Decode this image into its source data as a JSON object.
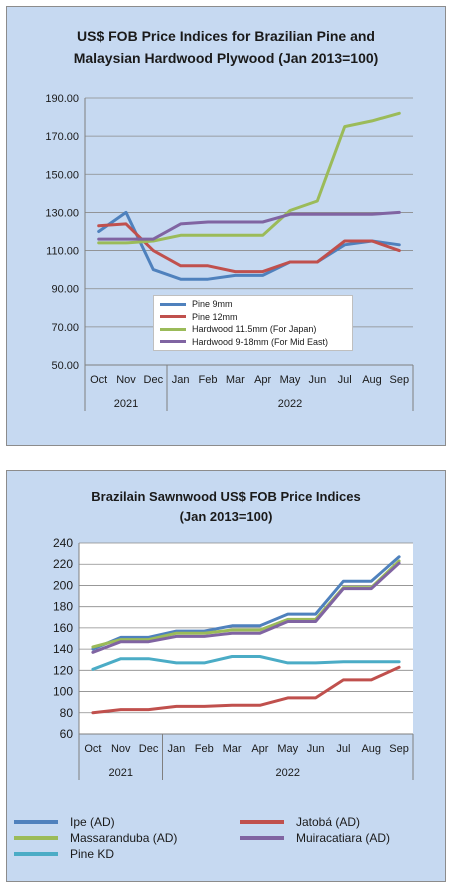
{
  "chart_data": [
    {
      "type": "line",
      "title_line1": "US$ FOB Price Indices for Brazilian Pine and",
      "title_line2": "Malaysian Hardwood Plywood (Jan 2013=100)",
      "categories": [
        "Oct",
        "Nov",
        "Dec",
        "Jan",
        "Feb",
        "Mar",
        "Apr",
        "May",
        "Jun",
        "Jul",
        "Aug",
        "Sep"
      ],
      "year_groups": [
        {
          "label": "2021",
          "count": 3
        },
        {
          "label": "2022",
          "count": 9
        }
      ],
      "ylim": [
        50,
        190
      ],
      "yticks": [
        "50.00",
        "70.00",
        "90.00",
        "110.00",
        "130.00",
        "150.00",
        "170.00",
        "190.00"
      ],
      "grid": true,
      "legend_position": "inside-bottom",
      "series": [
        {
          "name": "Pine 9mm",
          "color": "#4f81bd",
          "values": [
            120,
            130,
            100,
            95,
            95,
            97,
            97,
            104,
            104,
            113,
            115,
            113
          ]
        },
        {
          "name": "Pine 12mm",
          "color": "#c0504d",
          "values": [
            123,
            124,
            110,
            102,
            102,
            99,
            99,
            104,
            104,
            115,
            115,
            110
          ]
        },
        {
          "name": "Hardwood 11.5mm (For Japan)",
          "color": "#9bbb59",
          "values": [
            114,
            114,
            115,
            118,
            118,
            118,
            118,
            131,
            136,
            175,
            178,
            182
          ]
        },
        {
          "name": "Hardwood 9-18mm (For Mid East)",
          "color": "#8064a2",
          "values": [
            116,
            116,
            116,
            124,
            125,
            125,
            125,
            129,
            129,
            129,
            129,
            130
          ]
        }
      ]
    },
    {
      "type": "line",
      "title_line1": "Brazilain Sawnwood US$ FOB Price Indices",
      "title_line2": "(Jan 2013=100)",
      "categories": [
        "Oct",
        "Nov",
        "Dec",
        "Jan",
        "Feb",
        "Mar",
        "Apr",
        "May",
        "Jun",
        "Jul",
        "Aug",
        "Sep"
      ],
      "year_groups": [
        {
          "label": "2021",
          "count": 3
        },
        {
          "label": "2022",
          "count": 9
        }
      ],
      "ylim": [
        60,
        240
      ],
      "yticks": [
        "60",
        "80",
        "100",
        "120",
        "140",
        "160",
        "180",
        "200",
        "220",
        "240"
      ],
      "grid": true,
      "legend_position": "bottom",
      "series": [
        {
          "name": "Ipe (AD)",
          "color": "#4f81bd",
          "values": [
            140,
            151,
            151,
            157,
            157,
            162,
            162,
            173,
            173,
            204,
            204,
            227
          ]
        },
        {
          "name": "Jatobá (AD)",
          "color": "#c0504d",
          "values": [
            80,
            83,
            83,
            86,
            86,
            87,
            87,
            94,
            94,
            111,
            111,
            123
          ]
        },
        {
          "name": "Massaranduba (AD)",
          "color": "#9bbb59",
          "values": [
            142,
            149,
            149,
            155,
            155,
            158,
            158,
            168,
            168,
            198,
            198,
            223
          ]
        },
        {
          "name": "Muiracatiara (AD)",
          "color": "#8064a2",
          "values": [
            137,
            147,
            147,
            152,
            152,
            155,
            155,
            166,
            166,
            197,
            197,
            221
          ]
        },
        {
          "name": "Pine KD",
          "color": "#4bacc6",
          "values": [
            121,
            131,
            131,
            127,
            127,
            133,
            133,
            127,
            127,
            128,
            128,
            128
          ]
        }
      ]
    }
  ]
}
